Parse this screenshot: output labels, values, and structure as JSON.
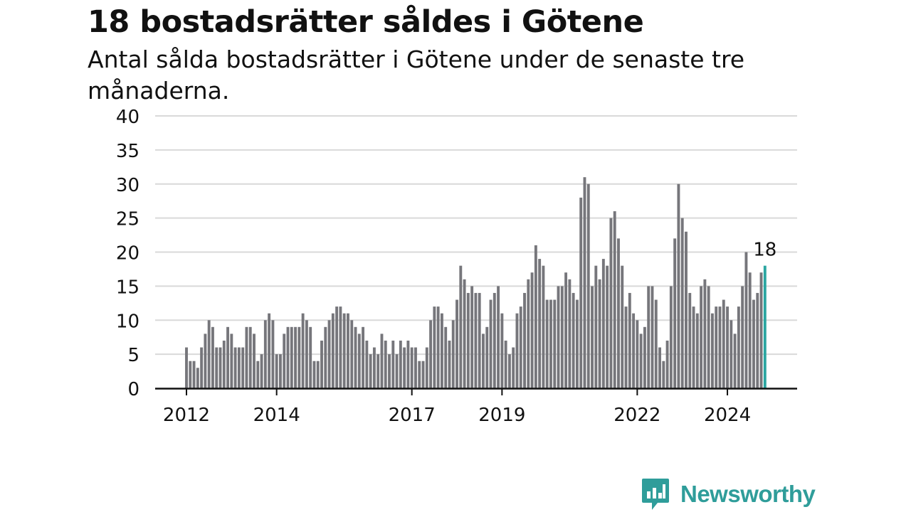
{
  "title": "18 bostadsrätter såldes i Götene",
  "subtitle": "Antal sålda bostadsrätter i Götene under de senaste tre månaderna.",
  "brand": {
    "name": "Newsworthy",
    "icon": "newsworthy-logo-icon",
    "color": "#2f9d9a"
  },
  "colors": {
    "bar": "#76767b",
    "highlight": "#2aa6a1",
    "grid": "#d9d9d9",
    "axis": "#111111"
  },
  "chart_data": {
    "type": "bar",
    "title": "18 bostadsrätter såldes i Götene",
    "subtitle": "Antal sålda bostadsrätter i Götene under de senaste tre månaderna.",
    "xlabel": "",
    "ylabel": "",
    "ylim": [
      0,
      40
    ],
    "yticks": [
      0,
      5,
      10,
      15,
      20,
      25,
      30,
      35,
      40
    ],
    "xticks": [
      "2012",
      "2014",
      "2017",
      "2019",
      "2022",
      "2024"
    ],
    "start": "2012-01",
    "grid": true,
    "highlight_label": "18",
    "values": [
      6,
      4,
      4,
      3,
      6,
      8,
      10,
      9,
      6,
      6,
      7,
      9,
      8,
      6,
      6,
      6,
      9,
      9,
      8,
      4,
      5,
      10,
      11,
      10,
      5,
      5,
      8,
      9,
      9,
      9,
      9,
      11,
      10,
      9,
      4,
      4,
      7,
      9,
      10,
      11,
      12,
      12,
      11,
      11,
      10,
      9,
      8,
      9,
      7,
      5,
      6,
      5,
      8,
      7,
      5,
      7,
      5,
      7,
      6,
      7,
      6,
      6,
      4,
      4,
      6,
      10,
      12,
      12,
      11,
      9,
      7,
      10,
      13,
      18,
      16,
      14,
      15,
      14,
      14,
      8,
      9,
      13,
      14,
      15,
      11,
      7,
      5,
      6,
      11,
      12,
      14,
      16,
      17,
      21,
      19,
      18,
      13,
      13,
      13,
      15,
      15,
      17,
      16,
      14,
      13,
      28,
      31,
      30,
      15,
      18,
      16,
      19,
      18,
      25,
      26,
      22,
      18,
      12,
      14,
      11,
      10,
      8,
      9,
      15,
      15,
      13,
      6,
      4,
      7,
      15,
      22,
      30,
      25,
      23,
      14,
      12,
      11,
      15,
      16,
      15,
      11,
      12,
      12,
      13,
      12,
      10,
      8,
      12,
      15,
      20,
      17,
      13,
      14,
      17,
      18
    ]
  }
}
